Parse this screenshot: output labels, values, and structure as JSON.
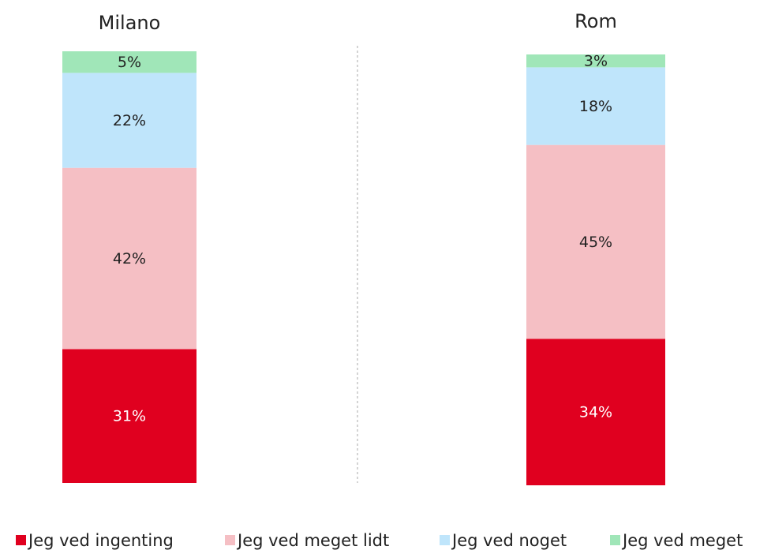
{
  "chart_data": {
    "type": "bar",
    "stacked": true,
    "categories": [
      "Milano",
      "Rom"
    ],
    "series": [
      {
        "name": "Jeg ved ingenting",
        "color": "#e0001f",
        "values": [
          31,
          34
        ],
        "value_labels": [
          "31%",
          "34%"
        ]
      },
      {
        "name": "Jeg ved meget lidt",
        "color": "#f5bfc4",
        "values": [
          42,
          45
        ],
        "value_labels": [
          "42%",
          "45%"
        ]
      },
      {
        "name": "Jeg ved noget",
        "color": "#bfe5fb",
        "values": [
          22,
          18
        ],
        "value_labels": [
          "22%",
          "18%"
        ]
      },
      {
        "name": "Jeg ved meget",
        "color": "#a0e6b8",
        "values": [
          5,
          3
        ],
        "value_labels": [
          "5%",
          "3%"
        ]
      }
    ]
  }
}
